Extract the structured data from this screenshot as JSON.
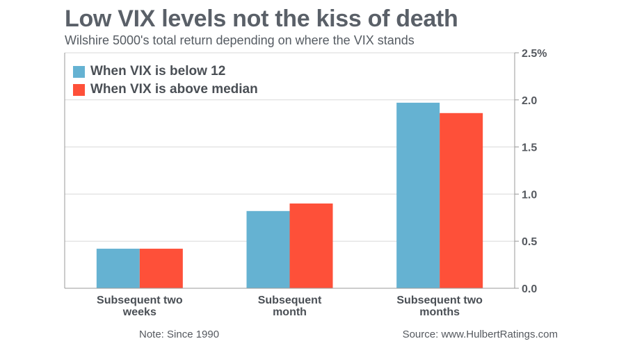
{
  "chart_data": {
    "type": "bar",
    "title": "Low VIX levels not the kiss of death",
    "subtitle": "Wilshire 5000's total return depending on where the VIX stands",
    "categories": [
      "Subsequent two weeks",
      "Subsequent month",
      "Subsequent two months"
    ],
    "category_lines": [
      [
        "Subsequent two",
        "weeks"
      ],
      [
        "Subsequent",
        "month"
      ],
      [
        "Subsequent two",
        "months"
      ]
    ],
    "series": [
      {
        "name": "When VIX is below 12",
        "values": [
          0.42,
          0.82,
          1.97
        ],
        "color": "#65b2d2"
      },
      {
        "name": "When VIX is above median",
        "values": [
          0.42,
          0.9,
          1.86
        ],
        "color": "#fe5039"
      }
    ],
    "y_ticks": [
      "0.0",
      "0.5",
      "1.0",
      "1.5",
      "2.0",
      "2.5%"
    ],
    "ylim": [
      0,
      2.5
    ],
    "grid": true,
    "legend_position": "top-left",
    "y_axis_side": "right"
  },
  "footer": {
    "note": "Note: Since 1990",
    "source": "Source: www.HulbertRatings.com"
  }
}
